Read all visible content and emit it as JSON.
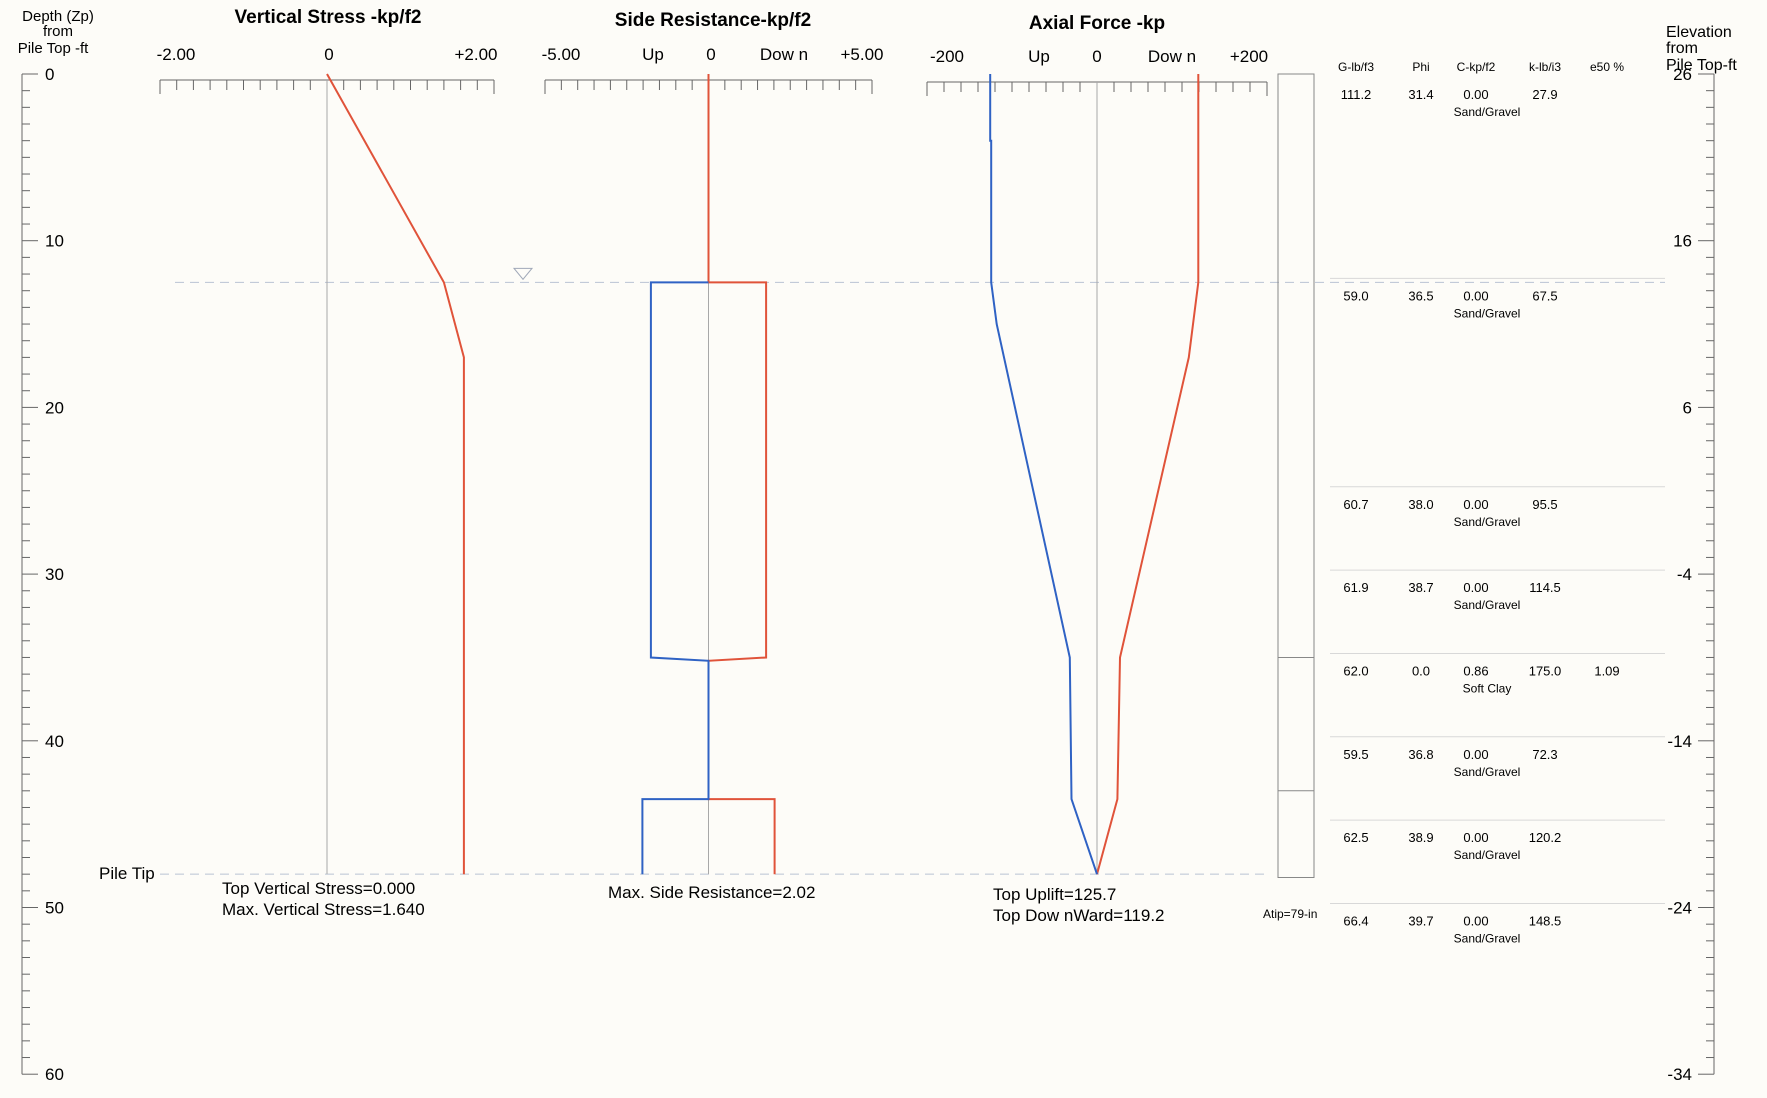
{
  "left_axis": {
    "title_lines": [
      "Depth (Zp)",
      "from",
      "Pile Top -ft"
    ],
    "ticks": [
      0,
      10,
      20,
      30,
      40,
      50,
      60
    ]
  },
  "right_axis": {
    "title_lines": [
      "Elevation",
      "from",
      "Pile Top-ft"
    ],
    "ticks": [
      26,
      16,
      6,
      -4,
      -14,
      -24,
      -34
    ]
  },
  "pile_tip": {
    "label": "Pile Tip",
    "depth": 48
  },
  "water_table_depth": 12.5,
  "colors": {
    "downward": "#e0533a",
    "upward": "#2f62c4",
    "grid": "#a8a8a8",
    "axis": "#666666",
    "dashed": "#b9c3d3"
  },
  "chart_data": [
    {
      "type": "line",
      "title": "Vertical Stress -kp/f2",
      "tick_labels": [
        "-2.00",
        "0",
        "+2.00"
      ],
      "xlim": [
        -2,
        2
      ],
      "ylim": [
        0,
        60
      ],
      "series": [
        {
          "color": "#e0533a",
          "points": [
            [
              0,
              0
            ],
            [
              1.4,
              12.5
            ],
            [
              1.64,
              17
            ],
            [
              1.64,
              48
            ]
          ]
        }
      ],
      "annotations": [
        "Top Vertical Stress=0.000",
        "Max. Vertical Stress=1.640"
      ]
    },
    {
      "type": "line",
      "title": "Side Resistance-kp/f2",
      "tick_labels": [
        "-5.00",
        "Up",
        "0",
        "Dow n",
        "+5.00"
      ],
      "xlim": [
        -5,
        5
      ],
      "ylim": [
        0,
        60
      ],
      "series": [
        {
          "color": "#e0533a",
          "points": [
            [
              0,
              0
            ],
            [
              0,
              12.5
            ],
            [
              1.76,
              12.5
            ],
            [
              1.76,
              35
            ],
            [
              0,
              35.2
            ],
            [
              0,
              43.5
            ],
            [
              2.02,
              43.5
            ],
            [
              2.02,
              48
            ]
          ]
        },
        {
          "color": "#2f62c4",
          "points": [
            [
              0,
              12.5
            ],
            [
              -1.76,
              12.5
            ],
            [
              -1.76,
              35
            ],
            [
              0,
              35.2
            ],
            [
              0,
              43.5
            ],
            [
              -2.02,
              43.5
            ],
            [
              -2.02,
              48
            ]
          ]
        }
      ],
      "annotations": [
        "Max. Side Resistance=2.02"
      ]
    },
    {
      "type": "line",
      "title": "Axial Force -kp",
      "tick_labels": [
        "-200",
        "Up",
        "0",
        "Dow n",
        "+200"
      ],
      "xlim": [
        -200,
        200
      ],
      "ylim": [
        0,
        60
      ],
      "series": [
        {
          "color": "#e0533a",
          "points": [
            [
              119.2,
              0
            ],
            [
              119.2,
              12.5
            ],
            [
              108,
              17
            ],
            [
              27,
              35
            ],
            [
              24,
              43.5
            ],
            [
              0,
              48
            ]
          ]
        },
        {
          "color": "#2f62c4",
          "points": [
            [
              -125.7,
              0
            ],
            [
              -125.7,
              4
            ],
            [
              -124.5,
              4
            ],
            [
              -124.5,
              12.5
            ],
            [
              -118,
              15
            ],
            [
              -32,
              35
            ],
            [
              -30,
              43.5
            ],
            [
              0,
              48
            ]
          ]
        }
      ],
      "annotations": [
        "Top Uplift=125.7",
        "Top Dow nWard=119.2"
      ]
    }
  ],
  "soil_table": {
    "headers": [
      "G-lb/f3",
      "Phi",
      "C-kp/f2",
      "k-lb/i3",
      "e50 %"
    ],
    "layers": [
      {
        "G": "111.2",
        "Phi": "31.4",
        "C": "0.00",
        "k": "27.9",
        "e50": "",
        "soil": "Sand/Gravel",
        "top_depth": 0
      },
      {
        "G": "59.0",
        "Phi": "36.5",
        "C": "0.00",
        "k": "67.5",
        "e50": "",
        "soil": "Sand/Gravel",
        "top_depth": 12.5
      },
      {
        "G": "60.7",
        "Phi": "38.0",
        "C": "0.00",
        "k": "95.5",
        "e50": "",
        "soil": "Sand/Gravel",
        "top_depth": 25
      },
      {
        "G": "61.9",
        "Phi": "38.7",
        "C": "0.00",
        "k": "114.5",
        "e50": "",
        "soil": "Sand/Gravel",
        "top_depth": 30
      },
      {
        "G": "62.0",
        "Phi": "0.0",
        "C": "0.86",
        "k": "175.0",
        "e50": "1.09",
        "soil": "Soft Clay",
        "top_depth": 35
      },
      {
        "G": "59.5",
        "Phi": "36.8",
        "C": "0.00",
        "k": "72.3",
        "e50": "",
        "soil": "Sand/Gravel",
        "top_depth": 40
      },
      {
        "G": "62.5",
        "Phi": "38.9",
        "C": "0.00",
        "k": "120.2",
        "e50": "",
        "soil": "Sand/Gravel",
        "top_depth": 45
      },
      {
        "G": "66.4",
        "Phi": "39.7",
        "C": "0.00",
        "k": "148.5",
        "e50": "",
        "soil": "Sand/Gravel",
        "top_depth": 50
      }
    ],
    "pile_layer_depths": [
      35,
      43
    ]
  },
  "atip_label": "Atip=79-in"
}
